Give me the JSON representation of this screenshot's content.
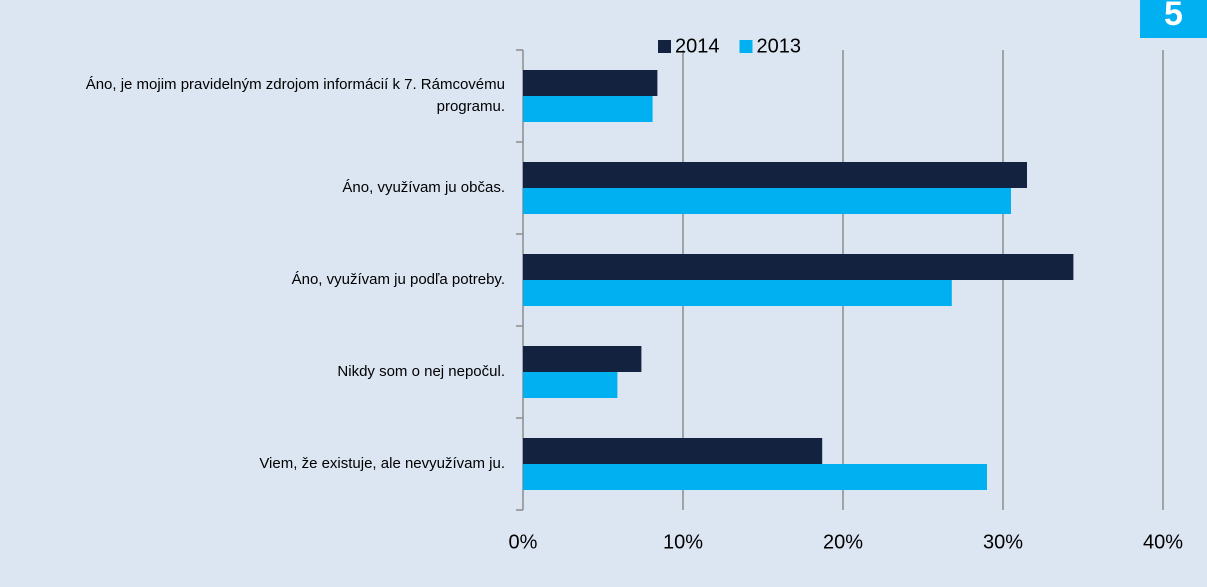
{
  "page_number": "5",
  "chart_data": {
    "type": "barh",
    "categories": [
      "Áno, je mojim pravidelným zdrojom informácií k 7. Rámcovému programu.",
      "Áno, využívam ju občas.",
      "Áno, využívam ju podľa potreby.",
      "Nikdy som o nej nepočul.",
      "Viem, že existuje, ale nevyužívam ju."
    ],
    "series": [
      {
        "name": "2014",
        "color": "#13233f",
        "values": [
          8.4,
          31.5,
          34.4,
          7.4,
          18.7
        ]
      },
      {
        "name": "2013",
        "color": "#00b0f0",
        "values": [
          8.1,
          30.5,
          26.8,
          5.9,
          29.0
        ]
      }
    ],
    "xlim": [
      0,
      40
    ],
    "xticks": [
      {
        "value": 0,
        "label": "0%"
      },
      {
        "value": 10,
        "label": "10%"
      },
      {
        "value": 20,
        "label": "20%"
      },
      {
        "value": 30,
        "label": "30%"
      },
      {
        "value": 40,
        "label": "40%"
      }
    ],
    "grid": true,
    "legend": "top"
  }
}
